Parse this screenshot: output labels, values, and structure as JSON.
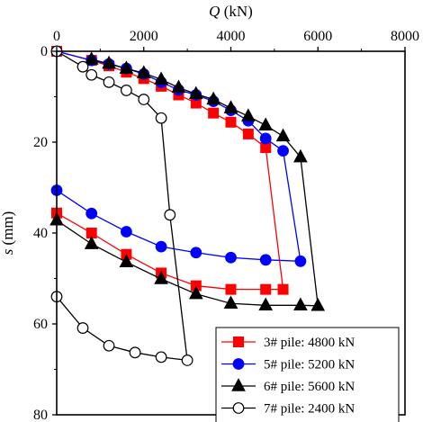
{
  "chart_data": {
    "type": "line",
    "xlabel": {
      "var": "Q",
      "unit": " (kN)"
    },
    "ylabel": {
      "var": "s",
      "unit": " (mm)"
    },
    "xlim": [
      0,
      8000
    ],
    "ylim": [
      0,
      80
    ],
    "y_inverted": true,
    "x_axis_position": "top",
    "xticks": [
      0,
      2000,
      4000,
      6000,
      8000
    ],
    "yticks": [
      0,
      20,
      40,
      60,
      80
    ],
    "xtick_labels": [
      "0",
      "2000",
      "4000",
      "6000",
      "8000"
    ],
    "ytick_labels": [
      "0",
      "20",
      "40",
      "60",
      "80"
    ],
    "grid": false,
    "legend_position": "bottom-right",
    "series": [
      {
        "name": "3# pile: 4800 kN",
        "color": "#ff0000",
        "marker": "square",
        "filled": true,
        "loading": [
          [
            0,
            0
          ],
          [
            800,
            2
          ],
          [
            1200,
            3.2
          ],
          [
            1600,
            4.6
          ],
          [
            2000,
            6
          ],
          [
            2400,
            7.7
          ],
          [
            2800,
            9.6
          ],
          [
            3200,
            11.4
          ],
          [
            3600,
            13.6
          ],
          [
            4000,
            15.6
          ],
          [
            4400,
            18.2
          ],
          [
            4800,
            21.2
          ]
        ],
        "failure": [
          [
            4800,
            21.2
          ],
          [
            5200,
            52.4
          ]
        ],
        "unloading": [
          [
            5200,
            52.4
          ],
          [
            4800,
            52.4
          ],
          [
            4000,
            52.4
          ],
          [
            3200,
            51.6
          ],
          [
            2400,
            48.8
          ],
          [
            1600,
            44.7
          ],
          [
            800,
            40
          ],
          [
            0,
            35.6
          ]
        ]
      },
      {
        "name": "5# pile: 5200 kN",
        "color": "#0000ff",
        "marker": "circle",
        "filled": true,
        "loading": [
          [
            0,
            0
          ],
          [
            800,
            2
          ],
          [
            1200,
            2.8
          ],
          [
            1600,
            3.8
          ],
          [
            2000,
            5
          ],
          [
            2400,
            6.8
          ],
          [
            2800,
            8.5
          ],
          [
            3200,
            9.6
          ],
          [
            3600,
            11
          ],
          [
            4000,
            13
          ],
          [
            4400,
            15.3
          ],
          [
            4800,
            19.2
          ],
          [
            5200,
            21.9
          ]
        ],
        "failure": [
          [
            5200,
            21.9
          ],
          [
            5600,
            46.2
          ]
        ],
        "unloading": [
          [
            5600,
            46.2
          ],
          [
            4800,
            45.9
          ],
          [
            4000,
            45.4
          ],
          [
            3200,
            44.3
          ],
          [
            2400,
            43
          ],
          [
            1600,
            39.7
          ],
          [
            800,
            35.7
          ],
          [
            0,
            30.6
          ]
        ]
      },
      {
        "name": "6# pile: 5600 kN",
        "color": "#000000",
        "marker": "triangle",
        "filled": true,
        "loading": [
          [
            800,
            1.8
          ],
          [
            1200,
            2.7
          ],
          [
            1600,
            3.8
          ],
          [
            2000,
            4.8
          ],
          [
            2400,
            6.2
          ],
          [
            2800,
            8
          ],
          [
            3200,
            9.4
          ],
          [
            3600,
            10.6
          ],
          [
            4000,
            12.5
          ],
          [
            4400,
            14.3
          ],
          [
            4800,
            16.3
          ],
          [
            5200,
            18.7
          ],
          [
            5600,
            23.3
          ]
        ],
        "failure": [
          [
            5600,
            23.3
          ],
          [
            6000,
            56
          ]
        ],
        "unloading": [
          [
            6000,
            56
          ],
          [
            5600,
            55.9
          ],
          [
            4800,
            55.9
          ],
          [
            4000,
            55.5
          ],
          [
            3200,
            53.4
          ],
          [
            2400,
            50.1
          ],
          [
            1600,
            46.4
          ],
          [
            800,
            42.4
          ],
          [
            0,
            37.2
          ]
        ]
      },
      {
        "name": "7# pile: 2400 kN",
        "color": "#000000",
        "marker": "circle",
        "filled": false,
        "loading": [
          [
            0,
            0
          ],
          [
            600,
            3.4
          ],
          [
            800,
            5.2
          ],
          [
            1200,
            6.8
          ],
          [
            1600,
            8.6
          ],
          [
            2000,
            10.6
          ],
          [
            2400,
            14.7
          ],
          [
            2600,
            36
          ]
        ],
        "failure": [
          [
            2600,
            36
          ],
          [
            3000,
            68
          ]
        ],
        "unloading": [
          [
            3000,
            68
          ],
          [
            2400,
            67.3
          ],
          [
            1800,
            66.3
          ],
          [
            1200,
            64.8
          ],
          [
            600,
            60.9
          ],
          [
            0,
            54
          ]
        ]
      }
    ]
  }
}
